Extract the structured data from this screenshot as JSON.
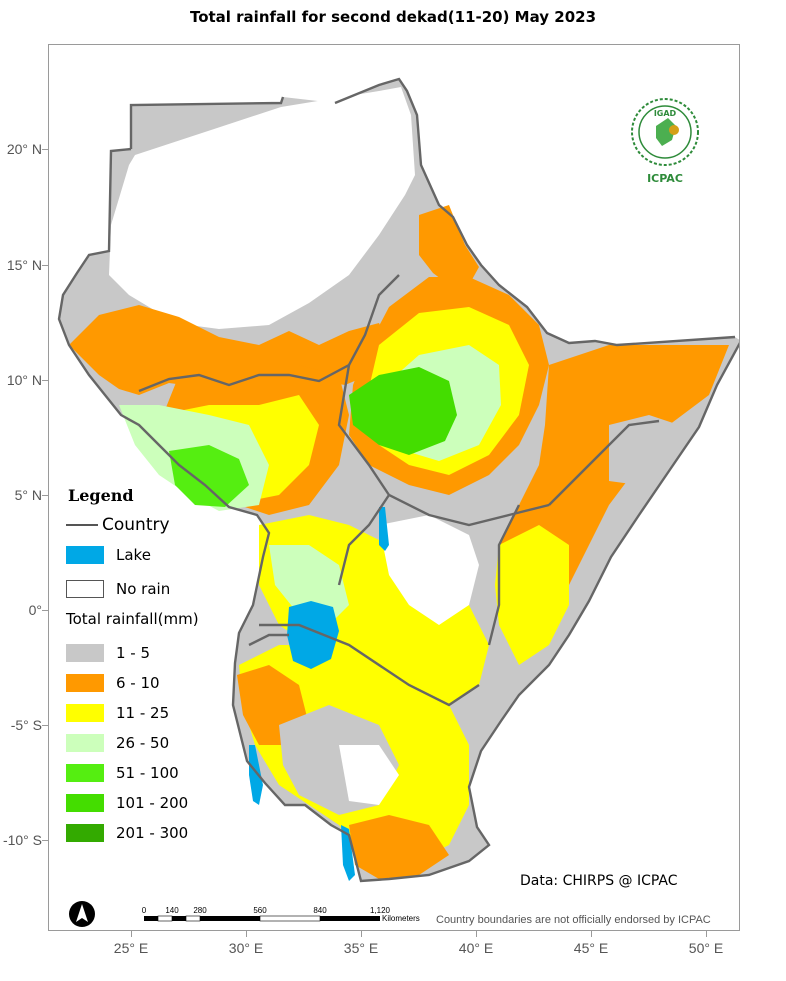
{
  "map": {
    "title": "Total rainfall  for  second dekad(11-20)  May 2023",
    "y_axis_labels": [
      "20° N",
      "15° N",
      "10° N",
      "5° N",
      "0°",
      "-5° S",
      "-10° S"
    ],
    "x_axis_labels": [
      "25° E",
      "30° E",
      "35° E",
      "40° E",
      "45° E",
      "50° E"
    ]
  },
  "legend": {
    "title": "Legend",
    "country_label": "Country",
    "lake_label": "Lake",
    "no_rain_label": "No rain",
    "rainfall_title": "Total rainfall(mm)",
    "classes": [
      {
        "label": "1 - 5",
        "color": "#c8c8c8"
      },
      {
        "label": "6 - 10",
        "color": "#ff9900"
      },
      {
        "label": "11 - 25",
        "color": "#ffff00"
      },
      {
        "label": "26 - 50",
        "color": "#ccffbb"
      },
      {
        "label": "51 - 100",
        "color": "#55ee11"
      },
      {
        "label": "101 - 200",
        "color": "#44dd00"
      },
      {
        "label": "201 - 300",
        "color": "#33aa00"
      }
    ],
    "lake_color": "#00a8e6",
    "country_line_color": "#555555"
  },
  "logo": {
    "top_text": "IGAD",
    "bottom_text": "ICPAC"
  },
  "credit": "Data: CHIRPS @ ICPAC",
  "disclaimer": "Country boundaries are not officially endorsed by ICPAC",
  "scale": {
    "ticks": [
      "0",
      "140",
      "280",
      "560",
      "840",
      "1,120"
    ],
    "unit": "Kilometers"
  }
}
